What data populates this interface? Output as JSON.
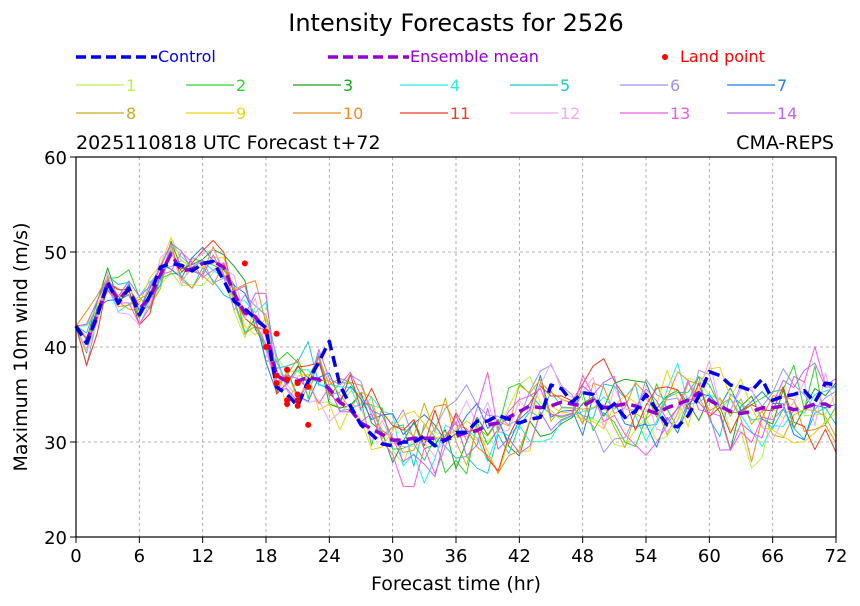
{
  "chart_data": {
    "type": "line",
    "title": "Intensity Forecasts for 2526",
    "subtitle_left": "2025110818 UTC Forecast t+72",
    "subtitle_right": "CMA-REPS",
    "xlabel": "Forecast time (hr)",
    "ylabel": "Maximum 10m wind (m/s)",
    "xlim": [
      0,
      72
    ],
    "ylim": [
      20,
      60
    ],
    "xticks": [
      "0",
      "6",
      "12",
      "18",
      "24",
      "30",
      "36",
      "42",
      "48",
      "54",
      "60",
      "66",
      "72"
    ],
    "yticks": [
      "20",
      "30",
      "40",
      "50",
      "60"
    ],
    "grid": true,
    "legend": {
      "control_label": "Control",
      "mean_label": "Ensemble mean",
      "land_label": "Land point",
      "control_color": "#0000ee",
      "mean_color": "#9400d3",
      "land_color": "#ff0000"
    },
    "x": [
      0,
      1,
      2,
      3,
      4,
      5,
      6,
      7,
      8,
      9,
      10,
      11,
      12,
      13,
      14,
      15,
      16,
      17,
      18,
      19,
      20,
      21,
      22,
      23,
      24,
      25,
      26,
      27,
      28,
      29,
      30,
      31,
      32,
      33,
      34,
      35,
      36,
      37,
      38,
      39,
      40,
      41,
      42,
      43,
      44,
      45,
      46,
      47,
      48,
      49,
      50,
      51,
      52,
      53,
      54,
      55,
      56,
      57,
      58,
      59,
      60,
      61,
      62,
      63,
      64,
      65,
      66,
      67,
      68,
      69,
      70,
      71,
      72
    ],
    "control": [
      42.2,
      40.4,
      43.2,
      46.8,
      44.6,
      46.2,
      43.4,
      45.4,
      48.4,
      48.8,
      48.6,
      48,
      48.8,
      49,
      47,
      44.8,
      44,
      43,
      42,
      35.8,
      35,
      33.8,
      36.4,
      38.4,
      40.6,
      36,
      33.8,
      31.8,
      30.8,
      29.8,
      29.6,
      30,
      30,
      30.6,
      29.6,
      30.2,
      31,
      31,
      32.2,
      32.2,
      32.8,
      32.4,
      32,
      32.4,
      32.6,
      36,
      35.6,
      34.2,
      35.2,
      35,
      33.2,
      34,
      32.6,
      33.2,
      35,
      33.4,
      31.8,
      31.6,
      32.8,
      34.8,
      37.4,
      37,
      36,
      35.8,
      35.4,
      36.6,
      34.4,
      34.8,
      35,
      35.4,
      34.2,
      36.2,
      36
    ],
    "mean": [
      42.2,
      40.6,
      43.4,
      46.6,
      45,
      46,
      44,
      45.2,
      47.6,
      49.8,
      48,
      48.2,
      48.8,
      49,
      48.4,
      45.6,
      43.6,
      43.2,
      41.6,
      37,
      36.4,
      36.4,
      36.8,
      36.6,
      35.6,
      34.2,
      33.4,
      32,
      31.4,
      30.8,
      30.2,
      30.2,
      30.4,
      30.4,
      30.4,
      30.2,
      30.6,
      31,
      31.2,
      31.8,
      32,
      32.6,
      33.2,
      33.8,
      33.6,
      33.8,
      34.2,
      34,
      33.8,
      34.4,
      33.6,
      33.8,
      34,
      33.8,
      33.4,
      33,
      33.6,
      34,
      34.4,
      35.2,
      34.4,
      33.8,
      33.2,
      33,
      33.2,
      33.6,
      33.6,
      33.8,
      33.4,
      33.6,
      34,
      34,
      33.4
    ],
    "land_points": [
      {
        "x": 16,
        "y": 48.8
      },
      {
        "x": 18,
        "y": 41.6
      },
      {
        "x": 18,
        "y": 40.0
      },
      {
        "x": 19,
        "y": 41.4
      },
      {
        "x": 19,
        "y": 37.0
      },
      {
        "x": 19,
        "y": 36.2
      },
      {
        "x": 20,
        "y": 37.6
      },
      {
        "x": 20,
        "y": 36.6
      },
      {
        "x": 20,
        "y": 34.4
      },
      {
        "x": 20,
        "y": 34.0
      },
      {
        "x": 21,
        "y": 36.2
      },
      {
        "x": 21,
        "y": 35.0
      },
      {
        "x": 21,
        "y": 34.4
      },
      {
        "x": 21,
        "y": 33.8
      },
      {
        "x": 22,
        "y": 35.8
      },
      {
        "x": 22,
        "y": 31.8
      }
    ],
    "members": [
      {
        "name": "1",
        "color": "#b6f24a"
      },
      {
        "name": "2",
        "color": "#2fd32f"
      },
      {
        "name": "3",
        "color": "#1aa31a"
      },
      {
        "name": "4",
        "color": "#22f0f0"
      },
      {
        "name": "5",
        "color": "#1ec8c8"
      },
      {
        "name": "6",
        "color": "#9b95ee"
      },
      {
        "name": "7",
        "color": "#1e7fe8"
      },
      {
        "name": "8",
        "color": "#c4b01e"
      },
      {
        "name": "9",
        "color": "#f0d210"
      },
      {
        "name": "10",
        "color": "#f08c1e"
      },
      {
        "name": "11",
        "color": "#e83c1e"
      },
      {
        "name": "12",
        "color": "#f4a8f0"
      },
      {
        "name": "13",
        "color": "#f05ae6"
      },
      {
        "name": "14",
        "color": "#c064f0"
      }
    ]
  }
}
